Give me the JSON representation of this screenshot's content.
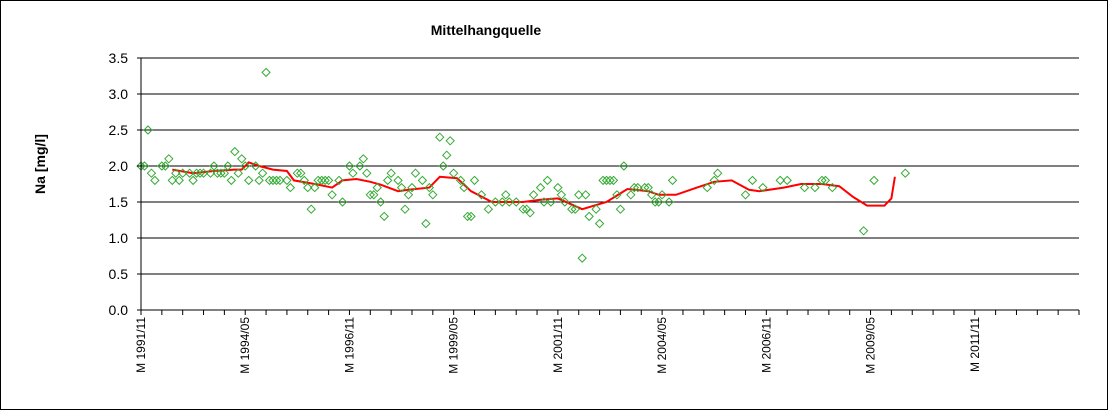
{
  "chart_data": {
    "type": "scatter",
    "title": "Mittelhangquelle",
    "ylabel": "Na [mg/l]",
    "xlabel": "",
    "ylim": [
      0,
      3.5
    ],
    "yticks": [
      "0.0",
      "0.5",
      "1.0",
      "1.5",
      "2.0",
      "2.5",
      "3.0",
      "3.5"
    ],
    "xlim": [
      "1991-11",
      "2014-05"
    ],
    "xtick_labels": [
      {
        "label": "M 1991/11",
        "date": "1991-11"
      },
      {
        "label": "M 1994/05",
        "date": "1994-05"
      },
      {
        "label": "M 1996/11",
        "date": "1996-11"
      },
      {
        "label": "M 1999/05",
        "date": "1999-05"
      },
      {
        "label": "M 2001/11",
        "date": "2001-11"
      },
      {
        "label": "M 2004/05",
        "date": "2004-05"
      },
      {
        "label": "M 2006/11",
        "date": "2006-11"
      },
      {
        "label": "M 2009/05",
        "date": "2009-05"
      },
      {
        "label": "M 2011/11",
        "date": "2011-11"
      }
    ],
    "grid": "horizontal",
    "legend": "none",
    "colors": {
      "points": "#33aa33",
      "trend": "#ff0000",
      "grid": "#000000",
      "plot_bg": "#ffffff"
    },
    "series": [
      {
        "marker": "diamond",
        "points": [
          [
            "1991-11",
            2.0
          ],
          [
            "1991-12",
            2.0
          ],
          [
            "1992-01",
            2.5
          ],
          [
            "1992-02",
            1.9
          ],
          [
            "1992-03",
            1.8
          ],
          [
            "1992-05",
            2.0
          ],
          [
            "1992-06",
            2.0
          ],
          [
            "1992-07",
            2.1
          ],
          [
            "1992-08",
            1.8
          ],
          [
            "1992-09",
            1.9
          ],
          [
            "1992-10",
            1.8
          ],
          [
            "1992-11",
            1.9
          ],
          [
            "1993-01",
            1.9
          ],
          [
            "1993-02",
            1.8
          ],
          [
            "1993-03",
            1.9
          ],
          [
            "1993-04",
            1.9
          ],
          [
            "1993-05",
            1.9
          ],
          [
            "1993-07",
            1.9
          ],
          [
            "1993-08",
            2.0
          ],
          [
            "1993-09",
            1.9
          ],
          [
            "1993-10",
            1.9
          ],
          [
            "1993-11",
            1.9
          ],
          [
            "1993-12",
            2.0
          ],
          [
            "1994-01",
            1.8
          ],
          [
            "1994-02",
            2.2
          ],
          [
            "1994-03",
            1.9
          ],
          [
            "1994-04",
            2.1
          ],
          [
            "1994-05",
            2.0
          ],
          [
            "1994-06",
            1.8
          ],
          [
            "1994-08",
            2.0
          ],
          [
            "1994-09",
            1.8
          ],
          [
            "1994-10",
            1.9
          ],
          [
            "1994-11",
            3.3
          ],
          [
            "1994-12",
            1.8
          ],
          [
            "1995-01",
            1.8
          ],
          [
            "1995-02",
            1.8
          ],
          [
            "1995-03",
            1.8
          ],
          [
            "1995-05",
            1.8
          ],
          [
            "1995-06",
            1.7
          ],
          [
            "1995-08",
            1.9
          ],
          [
            "1995-09",
            1.9
          ],
          [
            "1995-10",
            1.8
          ],
          [
            "1995-11",
            1.7
          ],
          [
            "1995-12",
            1.4
          ],
          [
            "1996-01",
            1.7
          ],
          [
            "1996-02",
            1.8
          ],
          [
            "1996-03",
            1.8
          ],
          [
            "1996-04",
            1.8
          ],
          [
            "1996-05",
            1.8
          ],
          [
            "1996-06",
            1.6
          ],
          [
            "1996-08",
            1.8
          ],
          [
            "1996-09",
            1.5
          ],
          [
            "1996-11",
            2.0
          ],
          [
            "1996-12",
            1.9
          ],
          [
            "1997-02",
            2.0
          ],
          [
            "1997-03",
            2.1
          ],
          [
            "1997-04",
            1.9
          ],
          [
            "1997-05",
            1.6
          ],
          [
            "1997-06",
            1.6
          ],
          [
            "1997-07",
            1.7
          ],
          [
            "1997-08",
            1.5
          ],
          [
            "1997-09",
            1.3
          ],
          [
            "1997-10",
            1.8
          ],
          [
            "1997-11",
            1.9
          ],
          [
            "1998-01",
            1.8
          ],
          [
            "1998-02",
            1.7
          ],
          [
            "1998-03",
            1.4
          ],
          [
            "1998-04",
            1.6
          ],
          [
            "1998-05",
            1.7
          ],
          [
            "1998-06",
            1.9
          ],
          [
            "1998-08",
            1.8
          ],
          [
            "1998-09",
            1.2
          ],
          [
            "1998-10",
            1.7
          ],
          [
            "1998-11",
            1.6
          ],
          [
            "1999-01",
            2.4
          ],
          [
            "1999-02",
            2.0
          ],
          [
            "1999-03",
            2.15
          ],
          [
            "1999-04",
            2.35
          ],
          [
            "1999-05",
            1.9
          ],
          [
            "1999-07",
            1.8
          ],
          [
            "1999-08",
            1.7
          ],
          [
            "1999-09",
            1.3
          ],
          [
            "1999-10",
            1.3
          ],
          [
            "1999-11",
            1.8
          ],
          [
            "2000-01",
            1.6
          ],
          [
            "2000-03",
            1.4
          ],
          [
            "2000-05",
            1.5
          ],
          [
            "2000-07",
            1.5
          ],
          [
            "2000-08",
            1.6
          ],
          [
            "2000-09",
            1.5
          ],
          [
            "2000-11",
            1.5
          ],
          [
            "2001-01",
            1.4
          ],
          [
            "2001-02",
            1.4
          ],
          [
            "2001-03",
            1.35
          ],
          [
            "2001-04",
            1.6
          ],
          [
            "2001-06",
            1.7
          ],
          [
            "2001-07",
            1.5
          ],
          [
            "2001-08",
            1.8
          ],
          [
            "2001-09",
            1.5
          ],
          [
            "2001-11",
            1.7
          ],
          [
            "2001-12",
            1.6
          ],
          [
            "2002-01",
            1.5
          ],
          [
            "2002-03",
            1.4
          ],
          [
            "2002-04",
            1.4
          ],
          [
            "2002-05",
            1.6
          ],
          [
            "2002-06",
            0.72
          ],
          [
            "2002-07",
            1.6
          ],
          [
            "2002-08",
            1.3
          ],
          [
            "2002-10",
            1.4
          ],
          [
            "2002-11",
            1.2
          ],
          [
            "2002-12",
            1.8
          ],
          [
            "2003-01",
            1.8
          ],
          [
            "2003-02",
            1.8
          ],
          [
            "2003-03",
            1.8
          ],
          [
            "2003-04",
            1.6
          ],
          [
            "2003-05",
            1.4
          ],
          [
            "2003-06",
            2.0
          ],
          [
            "2003-08",
            1.6
          ],
          [
            "2003-09",
            1.7
          ],
          [
            "2003-10",
            1.7
          ],
          [
            "2003-12",
            1.7
          ],
          [
            "2004-01",
            1.7
          ],
          [
            "2004-02",
            1.6
          ],
          [
            "2004-03",
            1.5
          ],
          [
            "2004-04",
            1.5
          ],
          [
            "2004-05",
            1.6
          ],
          [
            "2004-07",
            1.5
          ],
          [
            "2004-08",
            1.8
          ],
          [
            "2005-06",
            1.7
          ],
          [
            "2005-08",
            1.8
          ],
          [
            "2005-09",
            1.9
          ],
          [
            "2006-05",
            1.6
          ],
          [
            "2006-07",
            1.8
          ],
          [
            "2006-10",
            1.7
          ],
          [
            "2007-03",
            1.8
          ],
          [
            "2007-05",
            1.8
          ],
          [
            "2007-10",
            1.7
          ],
          [
            "2008-01",
            1.7
          ],
          [
            "2008-03",
            1.8
          ],
          [
            "2008-04",
            1.8
          ],
          [
            "2008-06",
            1.7
          ],
          [
            "2009-03",
            1.1
          ],
          [
            "2009-06",
            1.8
          ],
          [
            "2010-03",
            1.9
          ]
        ]
      },
      {
        "marker": "line",
        "points": [
          [
            "1992-08",
            1.95
          ],
          [
            "1993-02",
            1.9
          ],
          [
            "1993-08",
            1.93
          ],
          [
            "1994-02",
            1.95
          ],
          [
            "1994-04",
            1.95
          ],
          [
            "1994-06",
            2.05
          ],
          [
            "1994-09",
            2.0
          ],
          [
            "1995-01",
            1.95
          ],
          [
            "1995-05",
            1.93
          ],
          [
            "1995-07",
            1.8
          ],
          [
            "1996-01",
            1.75
          ],
          [
            "1996-06",
            1.7
          ],
          [
            "1996-09",
            1.8
          ],
          [
            "1997-01",
            1.82
          ],
          [
            "1997-05",
            1.78
          ],
          [
            "1997-08",
            1.74
          ],
          [
            "1998-01",
            1.65
          ],
          [
            "1998-04",
            1.67
          ],
          [
            "1998-10",
            1.7
          ],
          [
            "1999-01",
            1.85
          ],
          [
            "1999-06",
            1.83
          ],
          [
            "1999-10",
            1.65
          ],
          [
            "2000-04",
            1.5
          ],
          [
            "2001-01",
            1.5
          ],
          [
            "2001-06",
            1.53
          ],
          [
            "2001-11",
            1.55
          ],
          [
            "2002-06",
            1.4
          ],
          [
            "2003-01",
            1.5
          ],
          [
            "2003-07",
            1.68
          ],
          [
            "2004-01",
            1.65
          ],
          [
            "2004-04",
            1.6
          ],
          [
            "2004-09",
            1.6
          ],
          [
            "2005-03",
            1.7
          ],
          [
            "2005-08",
            1.78
          ],
          [
            "2006-01",
            1.8
          ],
          [
            "2006-06",
            1.67
          ],
          [
            "2006-09",
            1.65
          ],
          [
            "2007-04",
            1.7
          ],
          [
            "2007-09",
            1.75
          ],
          [
            "2008-03",
            1.75
          ],
          [
            "2008-08",
            1.72
          ],
          [
            "2008-12",
            1.57
          ],
          [
            "2009-04",
            1.45
          ],
          [
            "2009-09",
            1.45
          ],
          [
            "2009-11",
            1.55
          ],
          [
            "2009-12",
            1.85
          ]
        ]
      }
    ]
  }
}
